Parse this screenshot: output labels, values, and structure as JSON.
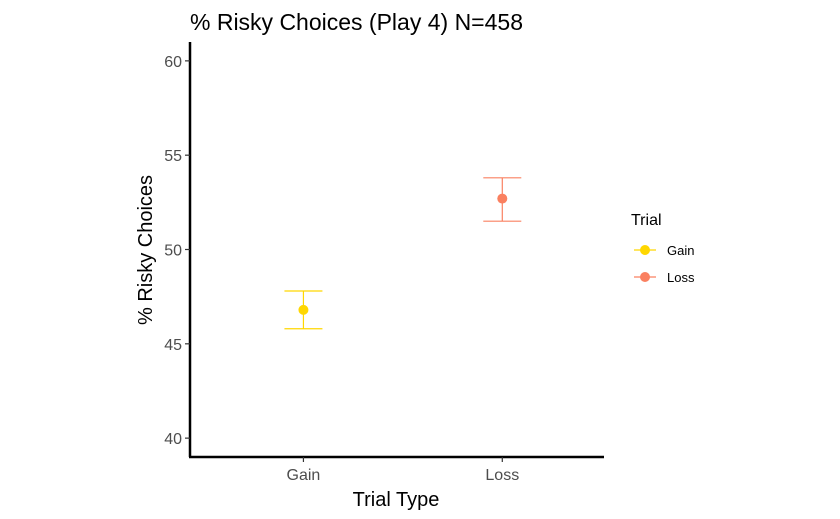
{
  "chart_data": {
    "type": "scatter",
    "title": "% Risky Choices (Play 4) N=458",
    "xlabel": "Trial Type",
    "ylabel": "% Risky Choices",
    "categories": [
      "Gain",
      "Loss"
    ],
    "ylim": [
      39,
      61
    ],
    "yticks": [
      "40",
      "45",
      "50",
      "55",
      "60"
    ],
    "series": [
      {
        "name": "Gain",
        "category": "Gain",
        "value": 46.8,
        "ci_low": 45.8,
        "ci_high": 47.8,
        "color": "#FFD700"
      },
      {
        "name": "Loss",
        "category": "Loss",
        "value": 52.7,
        "ci_low": 51.5,
        "ci_high": 53.8,
        "color": "#FA8060"
      }
    ],
    "legend": {
      "title": "Trial",
      "position": "right",
      "entries": [
        {
          "label": "Gain",
          "color": "#FFD700"
        },
        {
          "label": "Loss",
          "color": "#FA8060"
        }
      ]
    },
    "grid": false
  }
}
